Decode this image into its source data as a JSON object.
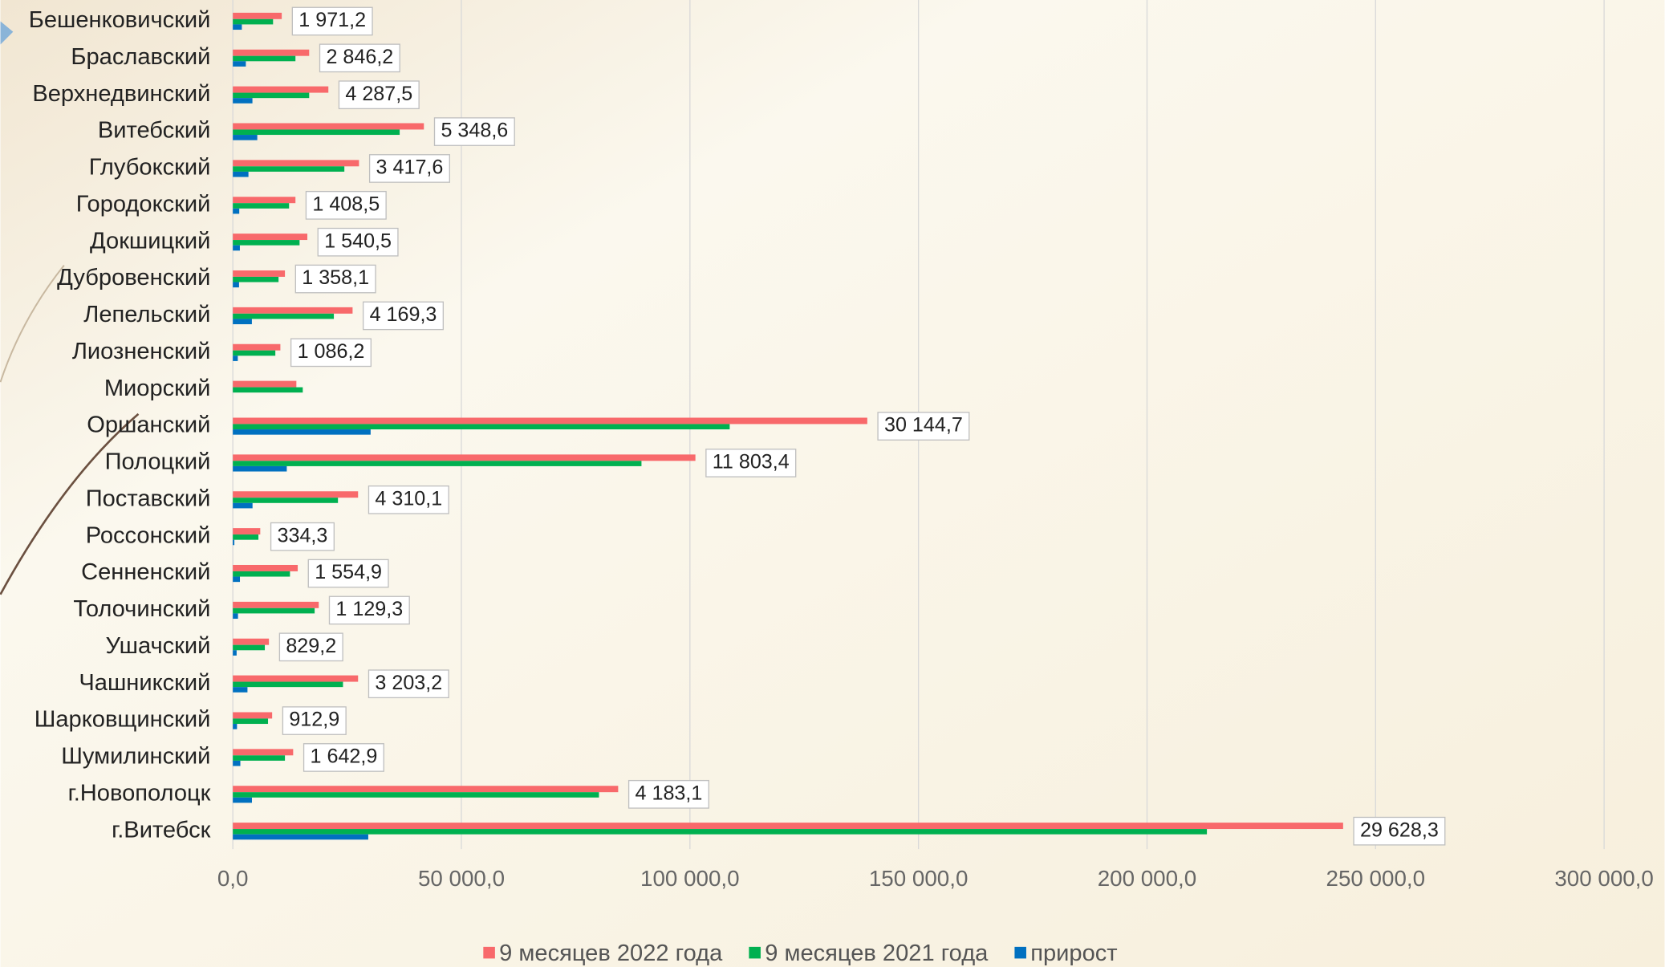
{
  "chart_data": {
    "type": "hbar",
    "categories": [
      "Бешенковичский",
      "Браславский",
      "Верхнедвинский",
      "Витебский",
      "Глубокский",
      "Городокский",
      "Докшицкий",
      "Дубровенский",
      "Лепельский",
      "Лиозненский",
      "Миорский",
      "Оршанский",
      "Полоцкий",
      "Поставский",
      "Россонский",
      "Сенненский",
      "Толочинский",
      "Ушачский",
      "Чашникский",
      "Шарковщинский",
      "Шумилинский",
      "г.Новополоцк",
      "г.Витебск"
    ],
    "series": [
      {
        "name": "9 месяцев 2022 года",
        "color": "#f8696b",
        "values": [
          10700,
          16700,
          20900,
          41800,
          27600,
          13700,
          16300,
          11400,
          26200,
          10400,
          13900,
          138800,
          101200,
          27400,
          6000,
          14200,
          18800,
          7900,
          27400,
          8600,
          13200,
          84300,
          242900
        ]
      },
      {
        "name": "9 месяцев 2021 года",
        "color": "#00b050",
        "values": [
          8800,
          13700,
          16700,
          36500,
          24400,
          12300,
          14600,
          10000,
          22100,
          9300,
          15300,
          108700,
          89400,
          23000,
          5600,
          12500,
          17900,
          7000,
          24100,
          7700,
          11400,
          80100,
          213100
        ]
      },
      {
        "name": "прирост",
        "color": "#0070c0",
        "values": [
          1971.2,
          2846.2,
          4287.5,
          5348.6,
          3417.6,
          1408.5,
          1540.5,
          1358.1,
          4169.3,
          1086.2,
          null,
          30144.7,
          11803.4,
          4310.1,
          334.3,
          1554.9,
          1129.3,
          829.2,
          3203.2,
          912.9,
          1642.9,
          4183.1,
          29628.3
        ],
        "value_labels": [
          "1 971,2",
          "2 846,2",
          "4 287,5",
          "5 348,6",
          "3 417,6",
          "1 408,5",
          "1 540,5",
          "1 358,1",
          "4 169,3",
          "1 086,2",
          null,
          "30 144,7",
          "11 803,4",
          "4 310,1",
          "334,3",
          "1 554,9",
          "1 129,3",
          "829,2",
          "3 203,2",
          "912,9",
          "1 642,9",
          "4 183,1",
          "29 628,3"
        ]
      }
    ],
    "xlim": [
      0,
      300000
    ],
    "xticks": [
      {
        "value": 0,
        "label": "0,0"
      },
      {
        "value": 50000,
        "label": "50 000,0"
      },
      {
        "value": 100000,
        "label": "100 000,0"
      },
      {
        "value": 150000,
        "label": "150 000,0"
      },
      {
        "value": 200000,
        "label": "200 000,0"
      },
      {
        "value": 250000,
        "label": "250 000,0"
      },
      {
        "value": 300000,
        "label": "300 000,0"
      }
    ],
    "grid": true,
    "legend": "bottom"
  }
}
